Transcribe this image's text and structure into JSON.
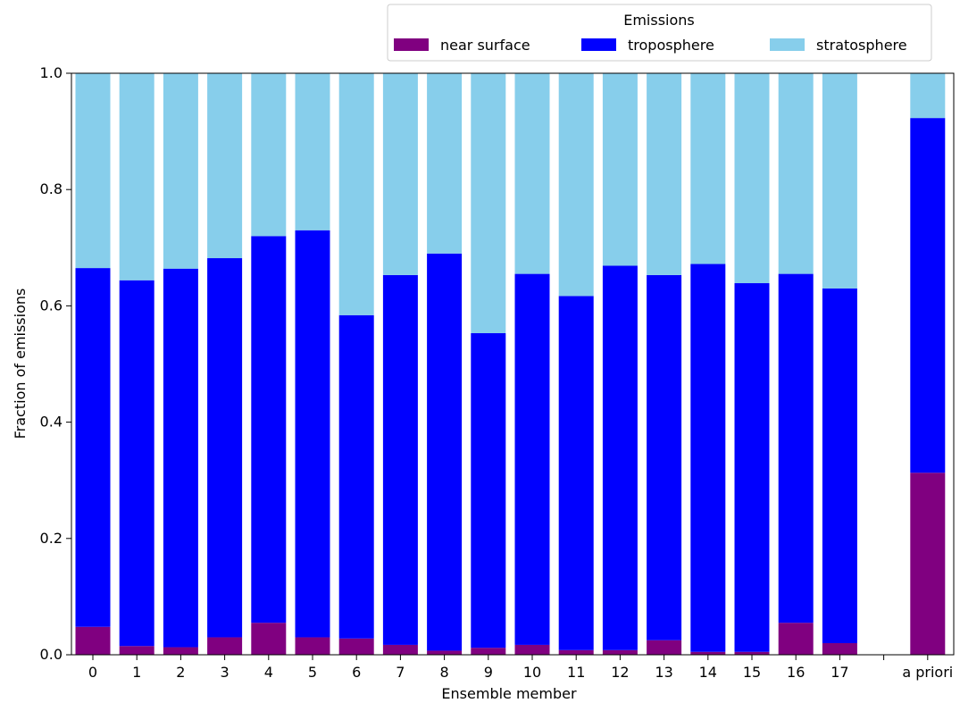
{
  "chart_data": {
    "type": "bar",
    "stacked": true,
    "xlabel": "Ensemble member",
    "ylabel": "Fraction of emissions",
    "ylim": [
      0,
      1.0
    ],
    "yticks": [
      "0.0",
      "0.2",
      "0.4",
      "0.6",
      "0.8",
      "1.0"
    ],
    "categories": [
      "0",
      "1",
      "2",
      "3",
      "4",
      "5",
      "6",
      "7",
      "8",
      "9",
      "10",
      "11",
      "12",
      "13",
      "14",
      "15",
      "16",
      "17",
      "",
      "a priori"
    ],
    "legend": {
      "title": "Emissions",
      "placement": "top-right, above plot",
      "columns": 3
    },
    "series": [
      {
        "name": "near surface",
        "color": "#800080",
        "values": [
          0.048,
          0.015,
          0.013,
          0.03,
          0.055,
          0.03,
          0.028,
          0.017,
          0.007,
          0.012,
          0.017,
          0.008,
          0.008,
          0.025,
          0.005,
          0.005,
          0.055,
          0.02,
          null,
          0.313
        ]
      },
      {
        "name": "troposphere",
        "color": "#0000ff",
        "values": [
          0.617,
          0.629,
          0.651,
          0.652,
          0.665,
          0.7,
          0.556,
          0.636,
          0.683,
          0.541,
          0.638,
          0.609,
          0.661,
          0.628,
          0.667,
          0.634,
          0.6,
          0.61,
          null,
          0.61
        ]
      },
      {
        "name": "stratosphere",
        "color": "#87ceeb",
        "values": [
          0.335,
          0.356,
          0.336,
          0.318,
          0.28,
          0.27,
          0.416,
          0.347,
          0.31,
          0.447,
          0.345,
          0.383,
          0.331,
          0.347,
          0.328,
          0.361,
          0.345,
          0.37,
          null,
          0.077
        ]
      }
    ]
  }
}
